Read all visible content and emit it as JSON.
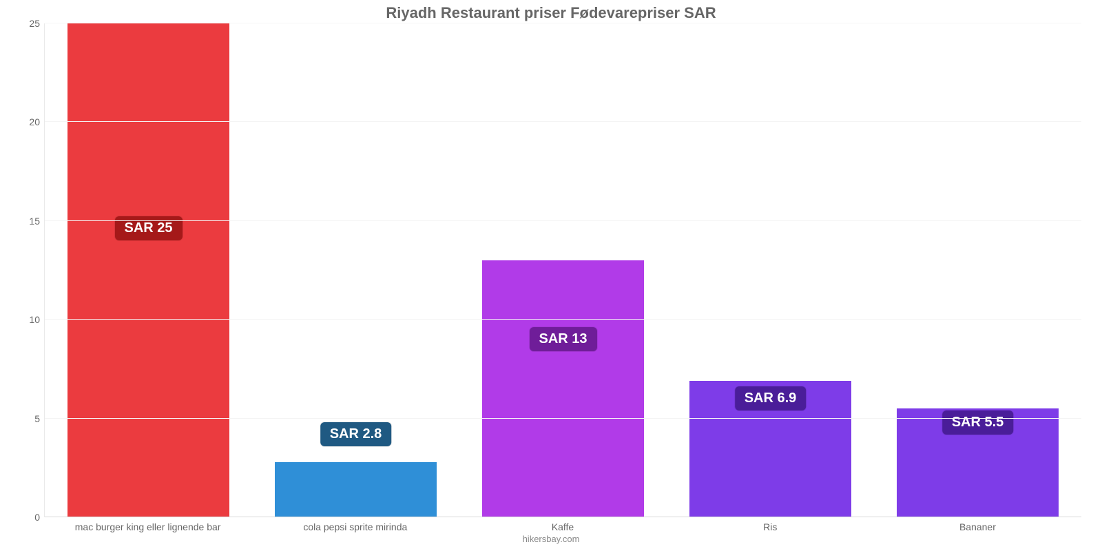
{
  "chart": {
    "type": "bar",
    "title": "Riyadh Restaurant priser Fødevarepriser SAR",
    "title_color": "#666666",
    "title_fontsize": 22,
    "background_color": "#ffffff",
    "grid_color": "#f4f4f4",
    "axis_color": "#e9e9e9",
    "tick_color": "#666666",
    "tick_fontsize": 14,
    "xlabel_fontsize": 14,
    "ylim": [
      0,
      25
    ],
    "yticks": [
      0,
      5,
      10,
      15,
      20,
      25
    ],
    "bar_width_ratio": 0.78,
    "source": "hikersbay.com",
    "source_color": "#888888",
    "categories": [
      "mac burger king eller lignende bar",
      "cola pepsi sprite mirinda",
      "Kaffe",
      "Ris",
      "Bananer"
    ],
    "values": [
      25,
      2.8,
      13,
      6.9,
      5.5
    ],
    "value_labels": [
      "SAR 25",
      "SAR 2.8",
      "SAR 13",
      "SAR 6.9",
      "SAR 5.5"
    ],
    "bar_colors": [
      "#eb3b3f",
      "#2f8fd7",
      "#b13be8",
      "#7e3ce8",
      "#7e3ce8"
    ],
    "badge_colors": [
      "#a51919",
      "#1f5982",
      "#6f1d99",
      "#4a1d99",
      "#4a1d99"
    ],
    "badge_anchor_value": [
      14,
      3.6,
      8.4,
      5.4,
      4.2
    ],
    "badge_fontsize": 20
  }
}
